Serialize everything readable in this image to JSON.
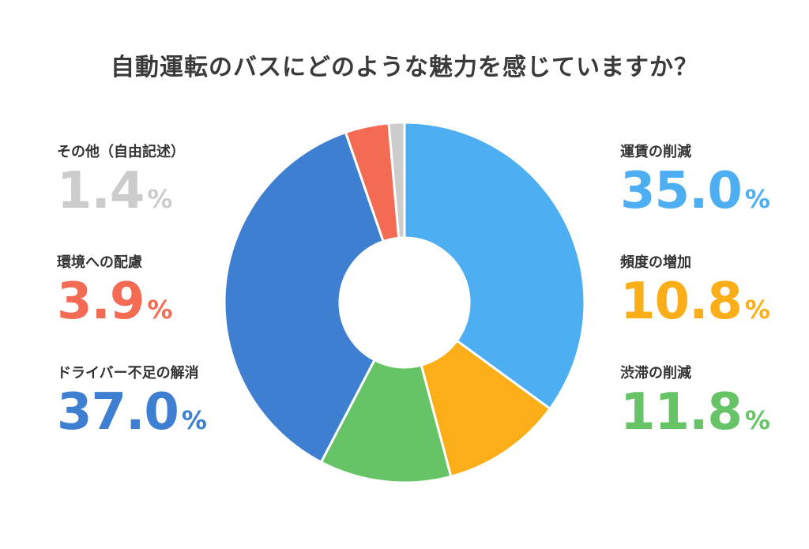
{
  "title": "自動運転のバスにどのような魅力を感じていますか？",
  "chart_data": {
    "type": "pie",
    "donut": true,
    "title": "自動運転のバスにどのような魅力を感じていますか？",
    "unit": "%",
    "slices": [
      {
        "label": "運賃の削減",
        "value": 35.0,
        "display": "35.0",
        "color": "#4DAFF2"
      },
      {
        "label": "頻度の増加",
        "value": 10.8,
        "display": "10.8",
        "color": "#FBAE17"
      },
      {
        "label": "渋滞の削減",
        "value": 11.8,
        "display": "11.8",
        "color": "#66C466"
      },
      {
        "label": "ドライバー不足の解消",
        "value": 37.0,
        "display": "37.0",
        "color": "#3F7FD2"
      },
      {
        "label": "環境への配慮",
        "value": 3.9,
        "display": "3.9",
        "color": "#F26B52"
      },
      {
        "label": "その他（自由記述）",
        "value": 1.4,
        "display": "1.4",
        "color": "#CCCCCC"
      }
    ]
  }
}
